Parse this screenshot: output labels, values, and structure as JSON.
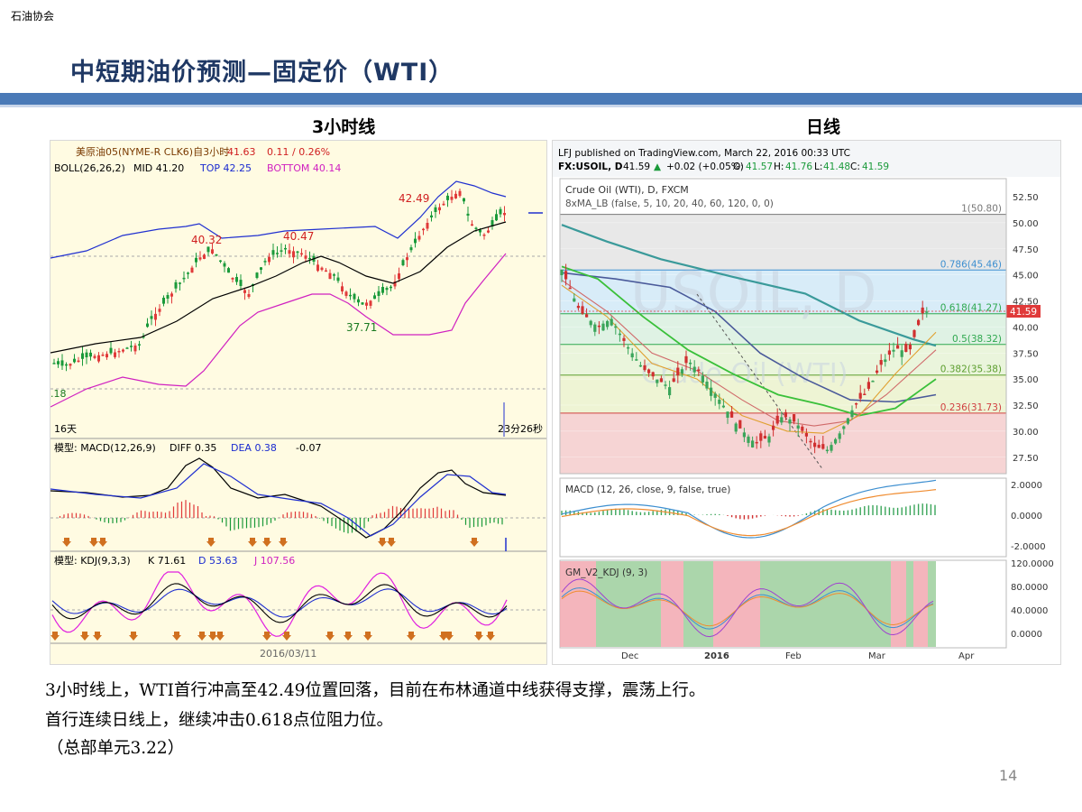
{
  "header": {
    "org": "石油协会",
    "title": "中短期油价预测—固定价（WTI）"
  },
  "panels": {
    "left_title": "3小时线",
    "right_title": "日线"
  },
  "left_chart": {
    "legend": "美原油05(NYME-R CLK6)自3小时",
    "price": "41.63",
    "change": "0.11 / 0.26%",
    "boll_name": "BOLL(26,26,2)",
    "boll_mid": "MID 41.20",
    "boll_top": "TOP 42.25",
    "boll_bottom": "BOTTOM 40.14",
    "annot_high": "42.49",
    "annot_a": "40.32",
    "annot_b": "40.47",
    "annot_low": "37.71",
    "left_edge": ".18",
    "days": "16天",
    "countdown": "23分26秒",
    "macd_label": "模型: MACD(12,26,9)",
    "macd_diff": "DIFF 0.35",
    "macd_dea": "DEA 0.38",
    "macd_val": "-0.07",
    "kdj_label": "模型: KDJ(9,3,3)",
    "kdj_k": "K 71.61",
    "kdj_d": "D 53.63",
    "kdj_j": "J 107.56",
    "date": "2016/03/11"
  },
  "right_chart": {
    "publisher": "LFJ published on TradingView.com, March 22, 2016 00:33 UTC",
    "symbol": "FX:USOIL, D",
    "last": "41.59",
    "chg": "+0.02 (+0.05%)",
    "o": "41.57",
    "h": "41.76",
    "l": "41.48",
    "c": "41.59",
    "name": "Crude Oil (WTI), D, FXCM",
    "ma": "8xMA_LB (false, 5, 10, 20, 40, 60, 120, 0, 0)",
    "watermark": "USOIL, D",
    "watermark2": "Crude Oil (WTI)",
    "yticks": [
      "52.50",
      "50.00",
      "47.50",
      "45.00",
      "42.50",
      "40.00",
      "37.50",
      "35.00",
      "32.50",
      "30.00",
      "27.50"
    ],
    "fib": [
      {
        "label": "1(50.80)",
        "v": 50.8,
        "color": "#777777"
      },
      {
        "label": "0.786(45.46)",
        "v": 45.46,
        "color": "#3d8fd0"
      },
      {
        "label": "0.618(41.27)",
        "v": 41.27,
        "color": "#2fa84f"
      },
      {
        "label": "0.5(38.32)",
        "v": 38.32,
        "color": "#2fa84f"
      },
      {
        "label": "0.382(35.38)",
        "v": 35.38,
        "color": "#5c9e2e"
      },
      {
        "label": "0.236(31.73)",
        "v": 31.73,
        "color": "#d04040"
      }
    ],
    "macd_label": "MACD (12, 26, close, 9, false, true)",
    "macd_ticks": [
      "2.0000",
      "0.0000",
      "-2.0000"
    ],
    "kdj_label": "GM_V2_KDJ (9, 3)",
    "kdj_ticks": [
      "120.0000",
      "80.0000",
      "40.0000",
      "0.0000"
    ],
    "months": [
      "Dec",
      "2016",
      "Feb",
      "Mar",
      "Apr"
    ]
  },
  "captions": {
    "line1": "3小时线上，WTI首行冲高至42.49位置回落，目前在布林通道中线获得支撑，震荡上行。",
    "line2": "首行连续日线上，继续冲击0.618点位阻力位。",
    "line3": "（总部单元3.22）"
  },
  "page_number": "14",
  "colors": {
    "title": "#1f3864",
    "band": "#4a7ab7",
    "up": "#e03a3a",
    "down": "#1a9a3a"
  }
}
